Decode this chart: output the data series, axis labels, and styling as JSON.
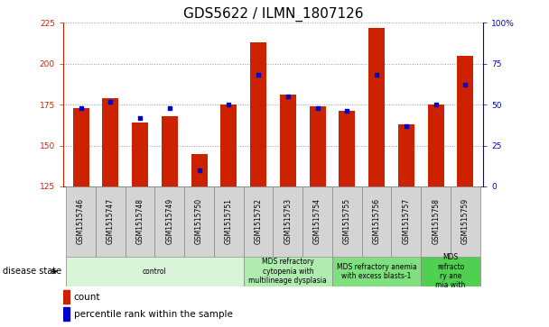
{
  "title": "GDS5622 / ILMN_1807126",
  "samples": [
    "GSM1515746",
    "GSM1515747",
    "GSM1515748",
    "GSM1515749",
    "GSM1515750",
    "GSM1515751",
    "GSM1515752",
    "GSM1515753",
    "GSM1515754",
    "GSM1515755",
    "GSM1515756",
    "GSM1515757",
    "GSM1515758",
    "GSM1515759"
  ],
  "count_values": [
    173,
    179,
    164,
    168,
    145,
    175,
    213,
    181,
    174,
    171,
    222,
    163,
    175,
    205
  ],
  "percentile_values": [
    48,
    52,
    42,
    48,
    10,
    50,
    68,
    55,
    48,
    46,
    68,
    37,
    50,
    62
  ],
  "ylim_left": [
    125,
    225
  ],
  "ylim_right": [
    0,
    100
  ],
  "yticks_left": [
    125,
    150,
    175,
    200,
    225
  ],
  "yticks_right": [
    0,
    25,
    50,
    75,
    100
  ],
  "bar_color": "#cc2200",
  "dot_color": "#0000cc",
  "bar_width": 0.55,
  "groups": [
    {
      "label": "control",
      "start": 0,
      "end": 5,
      "color": "#d8f5d8"
    },
    {
      "label": "MDS refractory\ncytopenia with\nmultilineage dysplasia",
      "start": 6,
      "end": 8,
      "color": "#b0ecb0"
    },
    {
      "label": "MDS refractory anemia\nwith excess blasts-1",
      "start": 9,
      "end": 11,
      "color": "#80e080"
    },
    {
      "label": "MDS\nrefracto\nry ane\nmia with",
      "start": 12,
      "end": 13,
      "color": "#50d050"
    }
  ],
  "disease_label": "disease state",
  "grid_color": "#999999",
  "plot_bg": "#ffffff",
  "title_fontsize": 11,
  "tick_fontsize": 6.5,
  "sample_fontsize": 5.5,
  "group_fontsize": 5.5,
  "legend_fontsize": 7.5
}
